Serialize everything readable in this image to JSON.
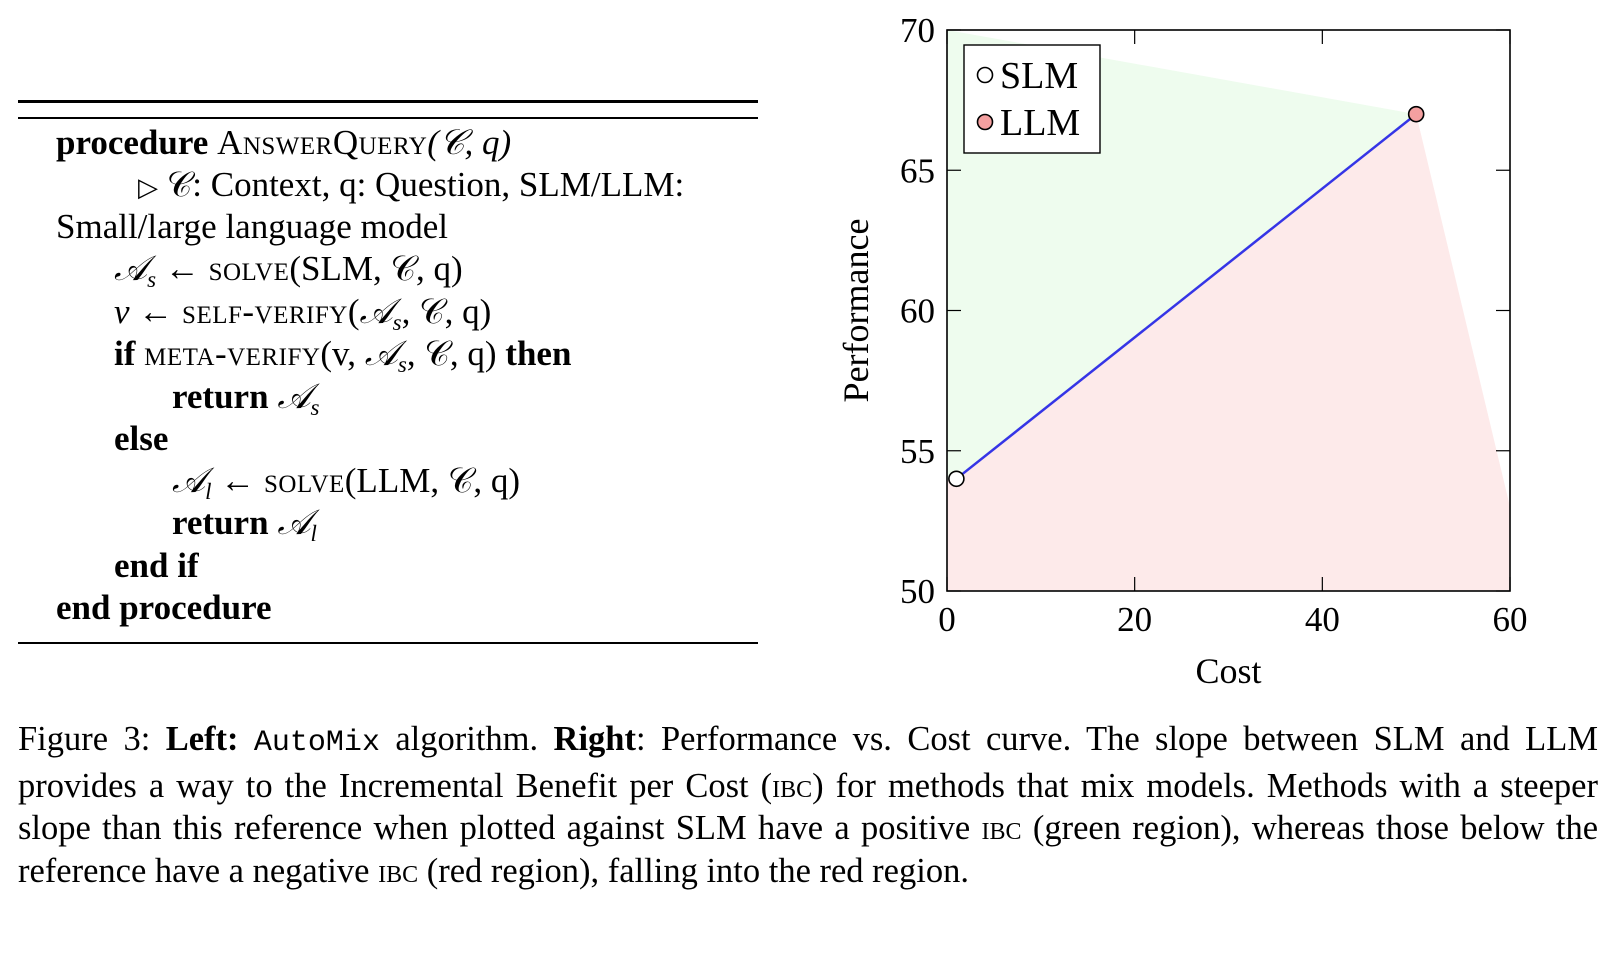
{
  "algorithm": {
    "procedure_kw": "procedure",
    "procedure_name": "AnswerQuery",
    "procedure_args": "(𝒞, q)",
    "comment_mark": "▷",
    "comment_line1": "𝒞: Context, q: Question, SLM/LLM:",
    "comment_line2": "Small/large language model",
    "as_sym": "𝒜",
    "as_sub": "s",
    "al_sub": "l",
    "arrow": "←",
    "solve_name": "solve",
    "solve_slm_args": "(SLM, 𝒞, q)",
    "v_sym": "v",
    "self_verify_name": "self-verify",
    "self_verify_args_pre": "(",
    "self_verify_args_post": ", 𝒞, q)",
    "if_kw": "if",
    "meta_verify_name": "meta-verify",
    "meta_verify_args_pre": "(v, ",
    "meta_verify_args_post": ", 𝒞, q)",
    "then_kw": "then",
    "return_kw": "return",
    "else_kw": "else",
    "solve_llm_args": "(LLM, 𝒞, q)",
    "end_if": "end if",
    "end_procedure": "end procedure"
  },
  "chart_data": {
    "type": "scatter",
    "title": "",
    "xlabel": "Cost",
    "ylabel": "Performance",
    "xlim": [
      0,
      60
    ],
    "ylim": [
      50,
      70
    ],
    "xticks": [
      "0",
      "20",
      "40",
      "60"
    ],
    "yticks": [
      "50",
      "55",
      "60",
      "65",
      "70"
    ],
    "series": [
      {
        "name": "SLM",
        "x": [
          1
        ],
        "y": [
          54
        ],
        "fill": "#ffffff",
        "stroke": "#000000"
      },
      {
        "name": "LLM",
        "x": [
          50
        ],
        "y": [
          67
        ],
        "fill": "#f4a0a0",
        "stroke": "#000000"
      }
    ],
    "reference_line": {
      "x": [
        1,
        50
      ],
      "y": [
        54,
        67
      ],
      "color": "#3535e6"
    },
    "regions": {
      "green": {
        "color": "#eefcee",
        "polygon": [
          [
            0,
            70
          ],
          [
            0,
            54
          ],
          [
            1,
            54
          ],
          [
            50,
            67
          ]
        ]
      },
      "red": {
        "color": "#fdeaea",
        "polygon": [
          [
            0,
            54
          ],
          [
            1,
            54
          ],
          [
            50,
            67
          ],
          [
            60,
            53
          ],
          [
            60,
            50
          ],
          [
            0,
            50
          ]
        ]
      }
    },
    "legend_position": "top-left"
  },
  "caption": {
    "figure_label": "Figure 3:",
    "left_label": "Left:",
    "automix": "AutoMix",
    "part1": "algorithm.",
    "right_label": "Right",
    "part2": ": Performance vs. Cost curve. The slope between SLM and LLM provides a way to the Incremental Benefit per Cost (",
    "ibc": "ibc",
    "part3": ") for methods that mix models. Methods with a steeper slope than this reference when plotted against SLM have a positive",
    "part4": "(green region), whereas those below the reference have a negative",
    "part5": "(red region), falling into the red region."
  }
}
